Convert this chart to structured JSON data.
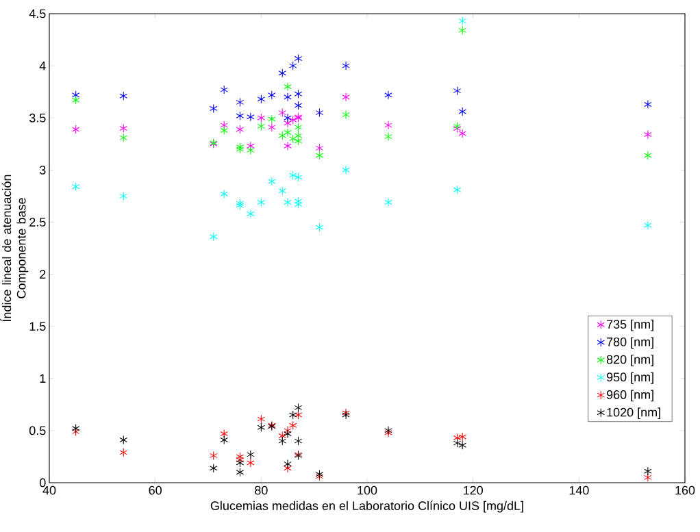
{
  "chart_data": {
    "type": "scatter",
    "xlabel": "Glucemias medidas en el Laboratorio Clínico UIS [mg/dL]",
    "ylabel": "Índice lineal de atenuación Componente base",
    "xlim": [
      40,
      160
    ],
    "xticks": [
      40,
      60,
      80,
      100,
      120,
      140,
      160
    ],
    "ylim": [
      0,
      4.5
    ],
    "yticks": [
      0,
      0.5,
      1,
      1.5,
      2,
      2.5,
      3,
      3.5,
      4,
      4.5
    ],
    "marker": "cross",
    "legend": "bottom right",
    "grid": false,
    "series": [
      {
        "name": "735 [nm]",
        "color": "#ff00ff",
        "x": [
          45,
          54,
          71,
          73,
          76,
          78,
          80,
          82,
          84,
          85,
          85,
          87,
          86,
          87,
          91,
          96,
          104,
          117,
          118,
          153
        ],
        "values": [
          3.39,
          3.4,
          3.25,
          3.43,
          3.39,
          3.23,
          3.5,
          3.41,
          3.55,
          3.23,
          3.45,
          3.51,
          3.48,
          3.5,
          3.21,
          3.7,
          3.43,
          3.4,
          3.35,
          3.34
        ]
      },
      {
        "name": "780 [nm]",
        "color": "#0000ff",
        "x": [
          45,
          54,
          71,
          73,
          76,
          76,
          78,
          80,
          82,
          84,
          85,
          86,
          87,
          87,
          87,
          85,
          91,
          96,
          104,
          117,
          118,
          153
        ],
        "values": [
          3.72,
          3.71,
          3.59,
          3.77,
          3.65,
          3.52,
          3.51,
          3.68,
          3.72,
          3.93,
          3.7,
          4.0,
          4.07,
          3.73,
          3.62,
          3.5,
          3.55,
          4.0,
          3.72,
          3.76,
          3.56,
          3.63
        ]
      },
      {
        "name": "820 [nm]",
        "color": "#00ff00",
        "x": [
          45,
          54,
          71,
          73,
          76,
          76,
          78,
          80,
          82,
          84,
          85,
          85,
          86,
          87,
          87,
          87,
          91,
          96,
          104,
          117,
          118,
          153
        ],
        "values": [
          3.67,
          3.31,
          3.26,
          3.38,
          3.22,
          3.2,
          3.19,
          3.42,
          3.49,
          3.33,
          3.8,
          3.36,
          3.3,
          3.41,
          3.33,
          3.28,
          3.14,
          3.53,
          3.32,
          3.42,
          4.34,
          3.14
        ]
      },
      {
        "name": "950 [nm]",
        "color": "#00ffff",
        "x": [
          45,
          54,
          71,
          73,
          76,
          76,
          78,
          80,
          82,
          84,
          85,
          86,
          87,
          87,
          87,
          91,
          96,
          104,
          117,
          118,
          153
        ],
        "values": [
          2.84,
          2.75,
          2.36,
          2.77,
          2.68,
          2.66,
          2.58,
          2.69,
          2.89,
          2.8,
          2.69,
          2.95,
          2.93,
          2.7,
          2.67,
          2.45,
          3.0,
          2.69,
          2.81,
          4.43,
          2.47
        ]
      },
      {
        "name": "960 [nm]",
        "color": "#ff0000",
        "x": [
          45,
          54,
          71,
          73,
          76,
          76,
          78,
          80,
          82,
          84,
          85,
          85,
          86,
          87,
          87,
          91,
          96,
          104,
          117,
          118,
          153
        ],
        "values": [
          0.49,
          0.29,
          0.26,
          0.47,
          0.25,
          0.22,
          0.19,
          0.61,
          0.55,
          0.45,
          0.5,
          0.14,
          0.55,
          0.65,
          0.27,
          0.06,
          0.67,
          0.48,
          0.43,
          0.44,
          0.05
        ]
      },
      {
        "name": "1020 [nm]",
        "color": "#000000",
        "x": [
          45,
          54,
          71,
          73,
          76,
          76,
          78,
          80,
          82,
          84,
          85,
          85,
          86,
          87,
          87,
          87,
          91,
          96,
          104,
          117,
          118,
          153
        ],
        "values": [
          0.52,
          0.41,
          0.14,
          0.41,
          0.19,
          0.1,
          0.27,
          0.53,
          0.54,
          0.4,
          0.47,
          0.18,
          0.65,
          0.72,
          0.4,
          0.26,
          0.08,
          0.65,
          0.5,
          0.38,
          0.36,
          0.11
        ]
      }
    ]
  }
}
